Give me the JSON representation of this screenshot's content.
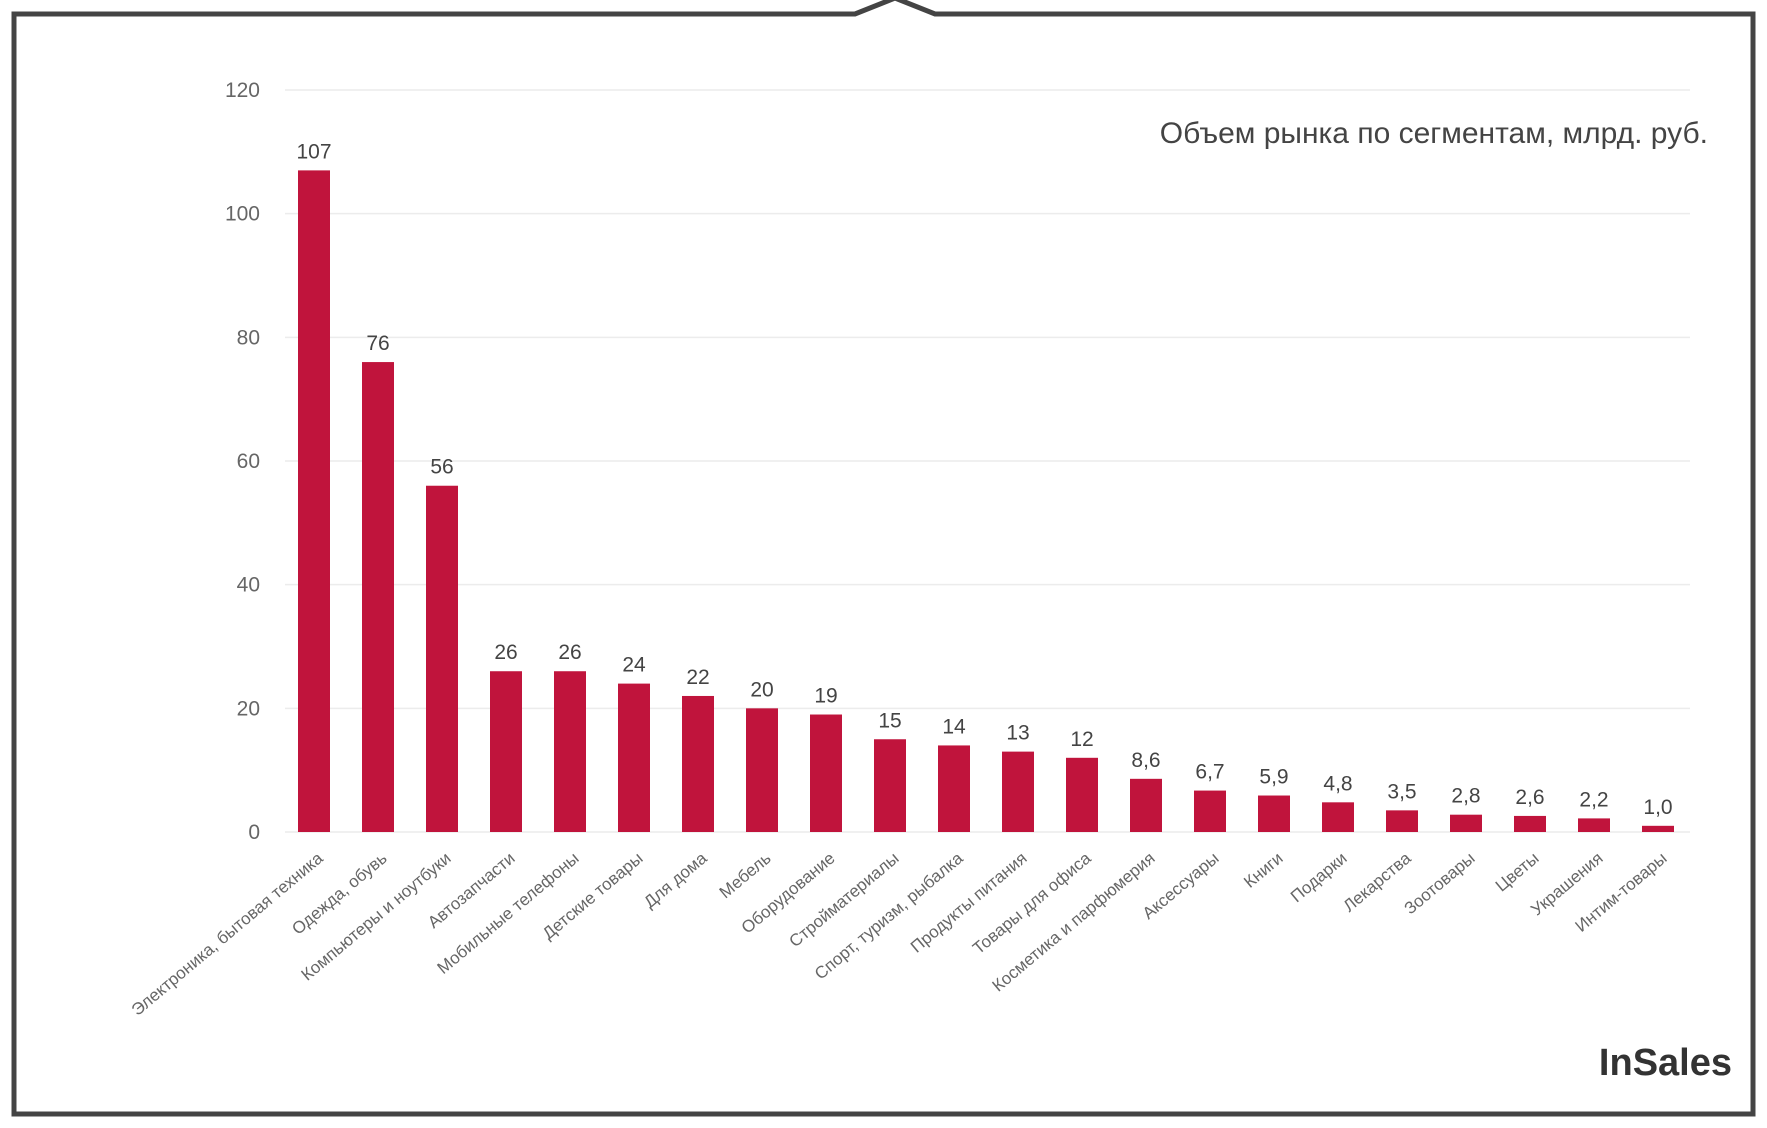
{
  "chart_data": {
    "type": "bar",
    "title": "Объем рынка по сегментам, млрд. руб.",
    "xlabel": "",
    "ylabel": "",
    "ylim": [
      0,
      120
    ],
    "yticks": [
      0,
      20,
      40,
      60,
      80,
      100,
      120
    ],
    "grid": true,
    "bar_color": "#c0143c",
    "categories": [
      "Электроника, бытовая техника",
      "Одежда, обувь",
      "Компьютеры и ноутбуки",
      "Автозапчасти",
      "Мобильные телефоны",
      "Детские товары",
      "Для дома",
      "Мебель",
      "Оборудование",
      "Стройматериалы",
      "Спорт, туризм, рыбалка",
      "Продукты питания",
      "Товары для офиса",
      "Косметика и парфюмерия",
      "Аксессуары",
      "Книги",
      "Подарки",
      "Лекарства",
      "Зоотовары",
      "Цветы",
      "Украшения",
      "Интим-товары"
    ],
    "values": [
      107,
      76,
      56,
      26,
      26,
      24,
      22,
      20,
      19,
      15,
      14,
      13,
      12,
      8.6,
      6.7,
      5.9,
      4.8,
      3.5,
      2.8,
      2.6,
      2.2,
      1.0
    ],
    "value_labels": [
      "107",
      "76",
      "56",
      "26",
      "26",
      "24",
      "22",
      "20",
      "19",
      "15",
      "14",
      "13",
      "12",
      "8,6",
      "6,7",
      "5,9",
      "4,8",
      "3,5",
      "2,8",
      "2,6",
      "2,2",
      "1,0"
    ]
  },
  "logo": {
    "text": "InSales"
  }
}
